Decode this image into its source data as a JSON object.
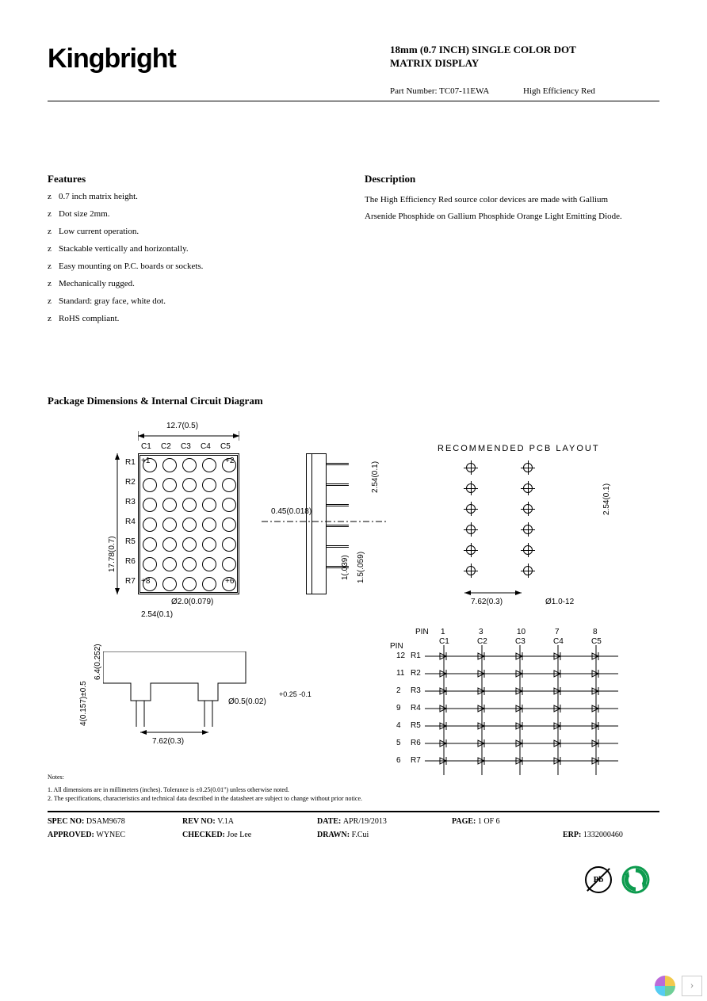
{
  "brand": "Kingbright",
  "title_line1": "18mm (0.7 INCH) SINGLE COLOR DOT",
  "title_line2": "MATRIX DISPLAY",
  "part_label": "Part Number: TC07-11EWA",
  "part_color": "High Efficiency Red",
  "features_h": "Features",
  "features_bullet": "z",
  "features": [
    "0.7 inch matrix height.",
    "Dot size 2mm.",
    "Low current operation.",
    "Stackable vertically and horizontally.",
    "Easy mounting on P.C. boards or sockets.",
    "Mechanically rugged.",
    "Standard: gray face, white dot.",
    "RoHS compliant."
  ],
  "description_h": "Description",
  "description": "The High Efficiency Red source color devices are made with Gallium Arsenide Phosphide on Gallium Phosphide Orange Light Emitting Diode.",
  "package_h": "Package Dimensions & Internal Circuit Diagram",
  "diagram": {
    "cols": [
      "C1",
      "C2",
      "C3",
      "C4",
      "C5"
    ],
    "rows": [
      "R1",
      "R2",
      "R3",
      "R4",
      "R5",
      "R6",
      "R7"
    ],
    "dim_width": "12.7(0.5)",
    "dim_height": "17.78(0.7)",
    "dim_dot": "Ø2.0(0.079)",
    "dim_pitch": "2.54(0.1)",
    "side_pitch": "2.54(0.1)",
    "side_pin_w": "0.45(0.018)",
    "side_h1": "1(.039)",
    "side_h2": "1.5(.059)",
    "pcb_title": "RECOMMENDED  PCB  LAYOUT",
    "pcb_pitch_v": "2.54(0.1)",
    "pcb_pitch_h": "7.62(0.3)",
    "pcb_hole": "Ø1.0-12",
    "bot_h1": "6.4(0.252)",
    "bot_h2": "4(0.157)±0.5",
    "bot_pin_dia": "Ø0.5(0.02)",
    "bot_pin_tol": "+0.25\n-0.1",
    "bot_row_pitch": "7.62(0.3)",
    "pin_label": "PIN",
    "col_pins": [
      "1",
      "3",
      "10",
      "7",
      "8"
    ],
    "row_pins": [
      "12",
      "11",
      "2",
      "9",
      "4",
      "5",
      "6"
    ]
  },
  "notes_h": "Notes:",
  "notes": [
    "1. All dimensions are in millimeters (inches). Tolerance is ±0.25(0.01\") unless otherwise noted.",
    "2. The specifications, characteristics and technical data described in the datasheet are subject to change without prior notice."
  ],
  "spec": {
    "spec_no_l": "SPEC NO: ",
    "spec_no": "DSAM9678",
    "rev_l": "REV NO: ",
    "rev": "V.1A",
    "date_l": "DATE: ",
    "date": "APR/19/2013",
    "page_l": "PAGE: ",
    "page": "1  OF  6",
    "approved_l": "APPROVED: ",
    "approved": "WYNEC",
    "checked_l": "CHECKED: ",
    "checked": "Joe Lee",
    "drawn_l": "DRAWN: ",
    "drawn": "F.Cui",
    "erp_l": "ERP: ",
    "erp": "1332000460"
  },
  "badge_pb": "Pb",
  "colors": {
    "text": "#000000",
    "rohs": "#0d9b4e"
  }
}
